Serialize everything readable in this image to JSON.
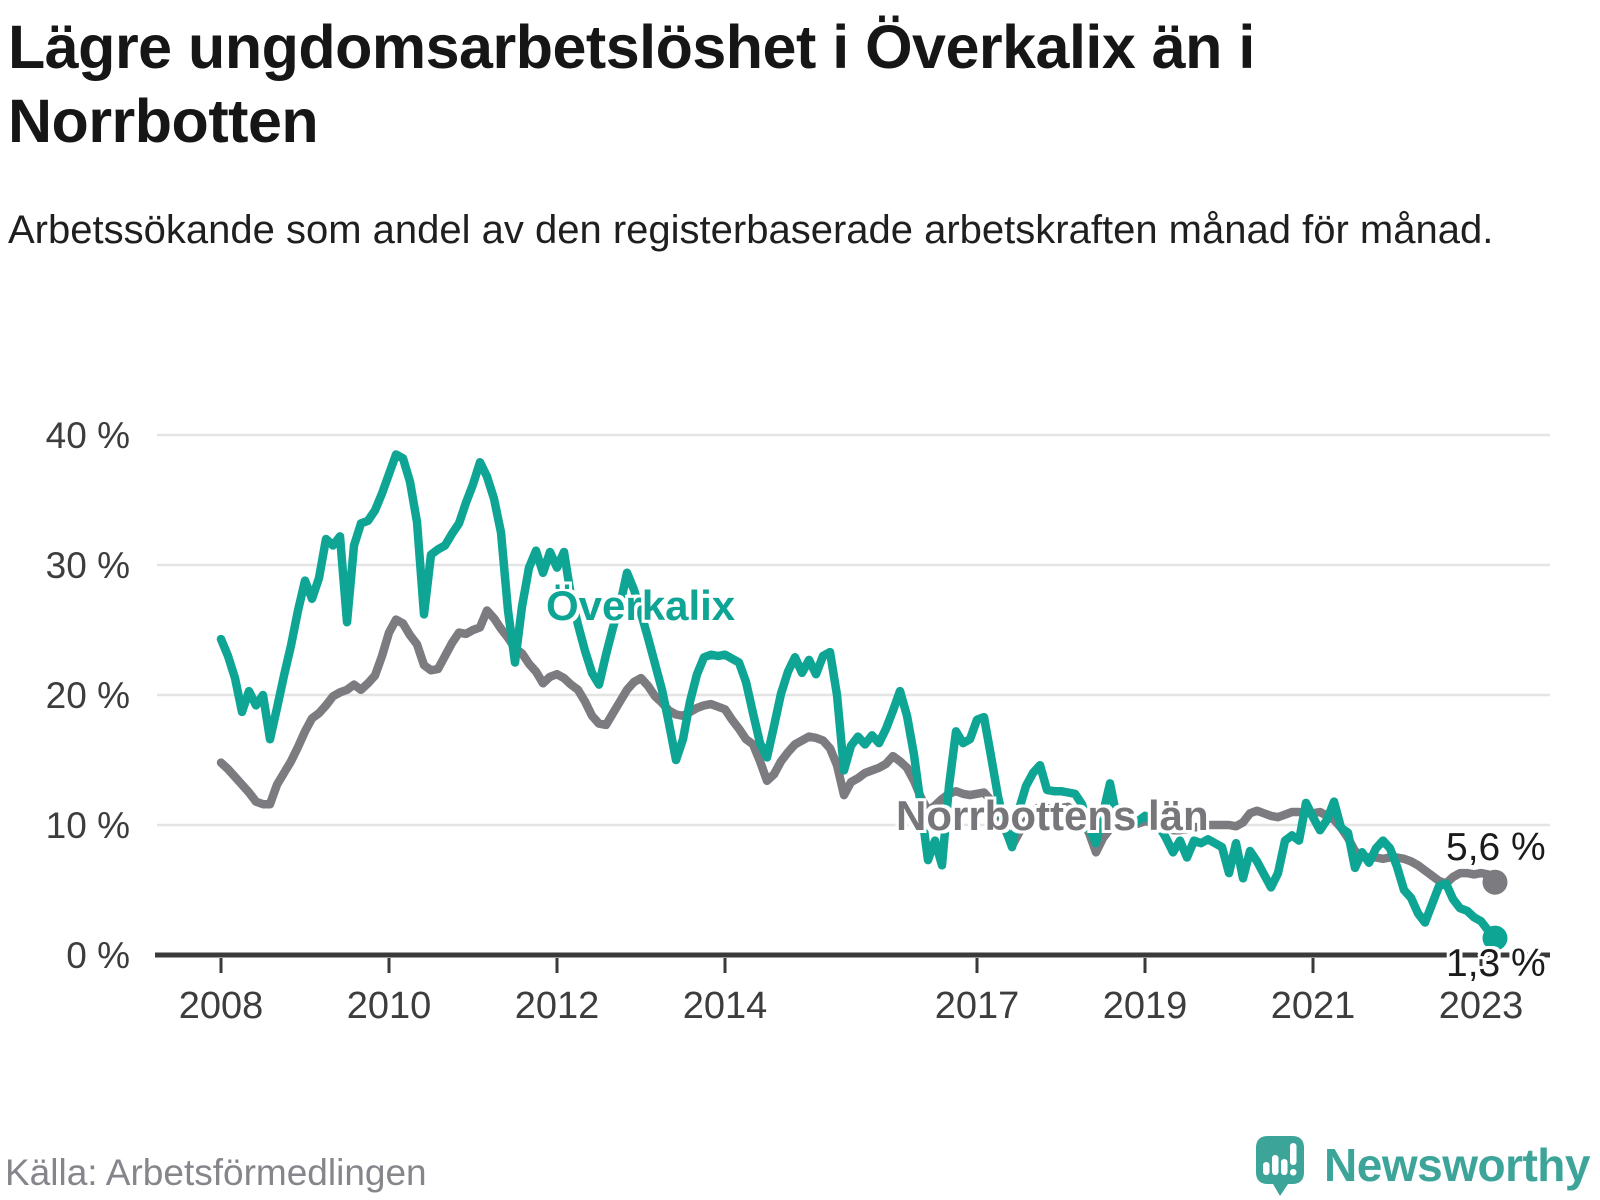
{
  "header": {
    "title": "Lägre ungdomsarbetslöshet i Överkalix än i Norrbotten",
    "subtitle": "Arbetssökande som andel av den registerbaserade arbetskraften månad för månad."
  },
  "annotations": {
    "series_label_overkalix": "Överkalix",
    "series_label_norrbotten": "Norrbottens län",
    "end_value_norrbotten": "5,6 %",
    "end_value_overkalix": "1,3 %"
  },
  "footer": {
    "source": "Källa: Arbetsförmedlingen",
    "brand": "Newsworthy"
  },
  "colors": {
    "overkalix": "#0ea595",
    "norrbotten": "#7b7b80",
    "axis": "#3a3a3a",
    "gridline": "#e4e4e4",
    "tick_text": "#3d3d3d",
    "brand_teal": "#3da49a"
  },
  "chart_data": {
    "type": "line",
    "title": "Lägre ungdomsarbetslöshet i Överkalix än i Norrbotten",
    "unit": "percent of registered labour force",
    "frequency": "monthly",
    "start_month": "2008-01",
    "end_month": "2023-03",
    "grid": true,
    "x_axis": {
      "tick_years": [
        2008,
        2010,
        2012,
        2014,
        2017,
        2019,
        2021,
        2023
      ]
    },
    "y_axis": {
      "min": 0,
      "max": 40,
      "ticks": [
        0,
        10,
        20,
        30,
        40
      ],
      "tick_suffix": " %"
    },
    "series": [
      {
        "name": "Norrbottens län",
        "color": "#7b7b80",
        "end_label": "5,6 %",
        "end_value": 5.6,
        "values": [
          14.8,
          14.3,
          13.7,
          13.1,
          12.5,
          11.8,
          11.6,
          11.6,
          13.1,
          14.0,
          14.9,
          16.0,
          17.2,
          18.2,
          18.6,
          19.2,
          19.9,
          20.2,
          20.4,
          20.8,
          20.4,
          20.9,
          21.5,
          23.0,
          24.8,
          25.8,
          25.5,
          24.6,
          23.9,
          22.3,
          21.9,
          22.0,
          23.0,
          24.0,
          24.8,
          24.7,
          25.0,
          25.2,
          26.5,
          25.9,
          25.1,
          24.4,
          23.6,
          23.2,
          22.4,
          21.8,
          20.9,
          21.4,
          21.6,
          21.3,
          20.8,
          20.4,
          19.5,
          18.4,
          17.8,
          17.7,
          18.6,
          19.5,
          20.4,
          21.0,
          21.3,
          20.7,
          19.9,
          19.4,
          18.8,
          18.5,
          18.4,
          18.7,
          19.0,
          19.2,
          19.3,
          19.1,
          18.9,
          18.1,
          17.4,
          16.6,
          16.2,
          14.9,
          13.4,
          13.9,
          14.9,
          15.6,
          16.2,
          16.5,
          16.8,
          16.7,
          16.5,
          15.9,
          14.6,
          12.3,
          13.3,
          13.6,
          14.0,
          14.2,
          14.4,
          14.7,
          15.3,
          14.9,
          14.4,
          13.4,
          12.1,
          11.1,
          11.5,
          12.0,
          12.4,
          12.6,
          12.4,
          12.3,
          12.4,
          12.5,
          11.9,
          10.9,
          9.7,
          8.4,
          9.4,
          10.3,
          11.1,
          11.4,
          11.3,
          11.1,
          11.3,
          11.4,
          11.1,
          10.4,
          9.4,
          7.9,
          9.0,
          9.7,
          10.1,
          10.3,
          10.2,
          10.1,
          10.3,
          10.2,
          10.0,
          9.8,
          9.6,
          9.6,
          9.7,
          9.8,
          9.9,
          10.0,
          10.0,
          10.0,
          10.0,
          9.9,
          10.2,
          10.9,
          11.1,
          10.9,
          10.7,
          10.6,
          10.8,
          11.0,
          11.0,
          10.9,
          10.9,
          11.0,
          10.7,
          10.4,
          9.8,
          9.0,
          8.0,
          7.6,
          7.5,
          7.5,
          7.4,
          7.5,
          7.5,
          7.4,
          7.2,
          6.9,
          6.5,
          6.1,
          5.7,
          5.5,
          6.0,
          6.3,
          6.3,
          6.2,
          6.3,
          6.2,
          5.6
        ]
      },
      {
        "name": "Överkalix",
        "color": "#0ea595",
        "end_label": "1,3 %",
        "end_value": 1.3,
        "values": [
          24.3,
          23.0,
          21.3,
          18.7,
          20.3,
          19.2,
          20.0,
          16.6,
          19.0,
          21.5,
          23.8,
          26.5,
          28.8,
          27.4,
          29.0,
          32.0,
          31.5,
          32.2,
          25.6,
          31.5,
          33.2,
          33.4,
          34.2,
          35.5,
          37.0,
          38.5,
          38.2,
          36.4,
          33.3,
          26.2,
          30.8,
          31.2,
          31.5,
          32.4,
          33.2,
          34.8,
          36.2,
          37.9,
          36.8,
          35.1,
          32.5,
          26.5,
          22.5,
          26.8,
          29.8,
          31.1,
          29.4,
          31.0,
          29.8,
          31.0,
          27.6,
          25.4,
          23.4,
          21.7,
          20.8,
          23.1,
          25.2,
          26.9,
          29.4,
          28.1,
          26.3,
          24.4,
          22.4,
          20.4,
          17.8,
          15.0,
          16.6,
          19.5,
          21.6,
          22.9,
          23.1,
          23.0,
          23.1,
          22.8,
          22.5,
          21.0,
          18.6,
          16.3,
          15.2,
          17.6,
          20.1,
          21.8,
          22.9,
          21.7,
          22.7,
          21.6,
          23.0,
          23.3,
          20.0,
          14.2,
          16.1,
          16.8,
          16.2,
          16.9,
          16.3,
          17.4,
          18.8,
          20.3,
          18.4,
          15.4,
          11.4,
          7.3,
          8.8,
          6.9,
          13.0,
          17.2,
          16.3,
          16.6,
          18.1,
          18.3,
          15.3,
          12.2,
          9.8,
          8.3,
          11.2,
          13.0,
          14.0,
          14.6,
          12.7,
          12.6,
          12.6,
          12.5,
          12.4,
          11.6,
          9.8,
          8.6,
          10.9,
          13.2,
          10.5,
          10.4,
          10.0,
          10.3,
          10.7,
          10.3,
          9.9,
          9.0,
          7.9,
          8.8,
          7.5,
          8.8,
          8.6,
          8.9,
          8.6,
          8.3,
          6.3,
          8.6,
          5.9,
          8.0,
          7.2,
          6.2,
          5.2,
          6.3,
          8.8,
          9.2,
          8.8,
          11.7,
          10.6,
          9.6,
          10.4,
          11.8,
          9.8,
          9.4,
          6.7,
          7.9,
          7.1,
          8.2,
          8.8,
          8.2,
          6.8,
          5.0,
          4.4,
          3.2,
          2.5,
          3.9,
          5.3,
          5.5,
          4.3,
          3.6,
          3.4,
          2.9,
          2.6,
          1.9,
          1.3
        ]
      }
    ]
  }
}
